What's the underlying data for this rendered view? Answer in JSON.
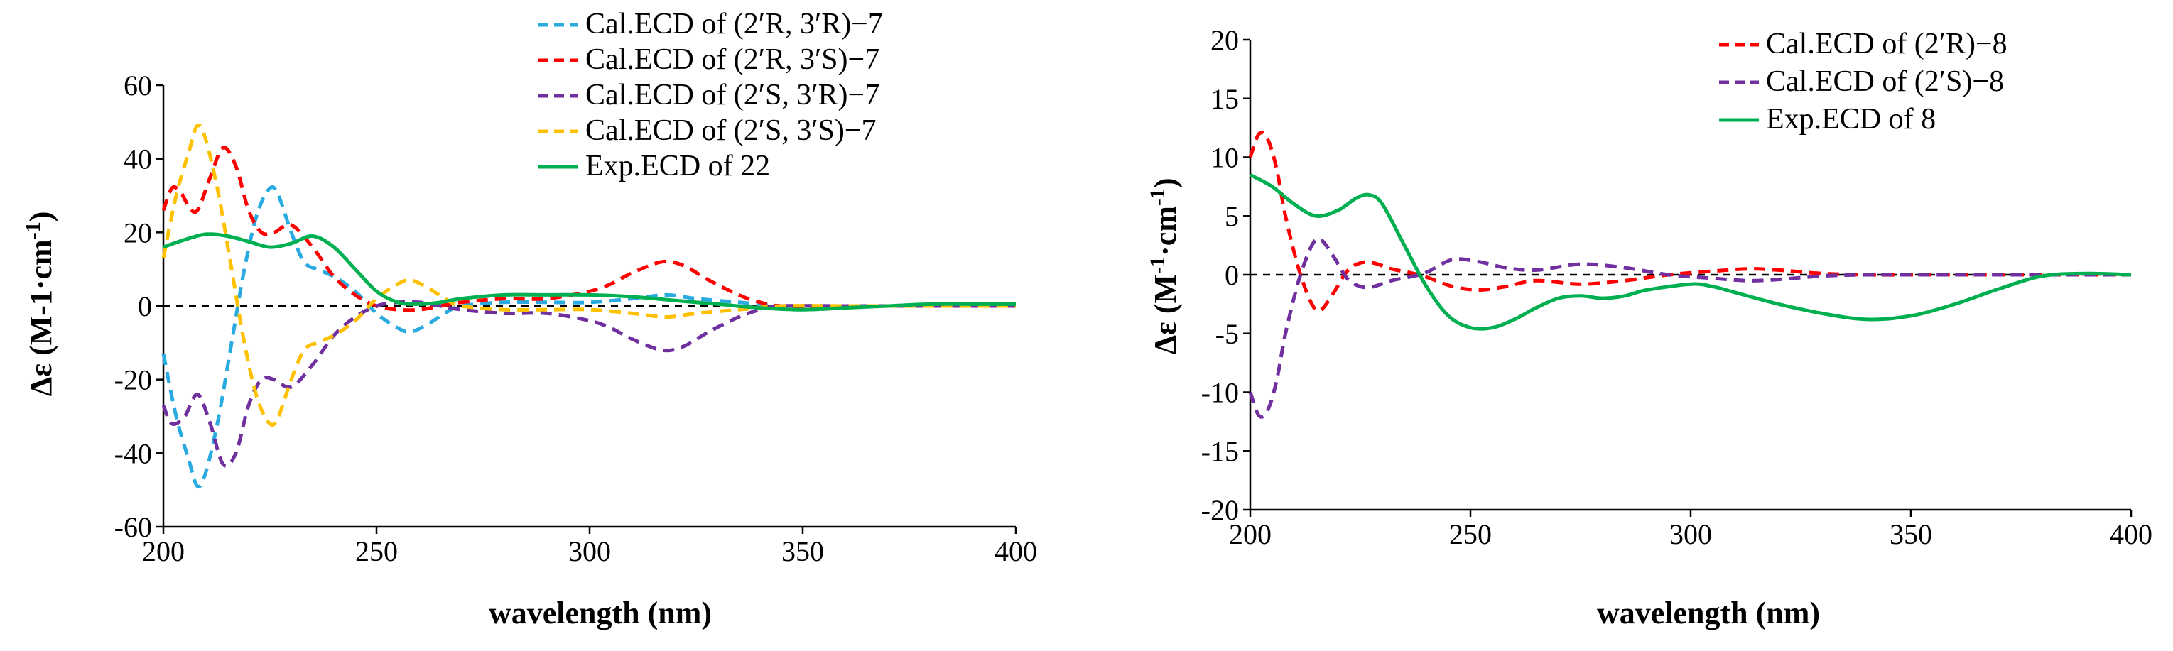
{
  "chart_data": [
    {
      "type": "line",
      "ylabel": "Δε (M-1·cm-1)",
      "ylabel_main": "Δε (M-1·cm",
      "ylabel_sup": "-1",
      "ylabel_end": ")",
      "xlabel": "wavelength (nm)",
      "xlim": [
        200,
        400
      ],
      "ylim": [
        -60,
        60
      ],
      "xticks": [
        200,
        250,
        300,
        350,
        400
      ],
      "xtick_labels": [
        "200",
        "250",
        "300",
        "350",
        "400"
      ],
      "yticks": [
        -60,
        -40,
        -20,
        0,
        20,
        40,
        60
      ],
      "ytick_labels": [
        "-60",
        "-40",
        "-20",
        "0",
        "20",
        "40",
        "60"
      ],
      "zero_line": true,
      "legend_position": "top-right",
      "series": [
        {
          "name": "Cal.ECD of (2′R, 3′R)−7",
          "color": "#29ABE2",
          "dashed": true,
          "x": [
            200,
            203,
            206,
            208,
            210,
            213,
            216,
            219,
            222,
            225,
            227,
            230,
            233,
            236,
            240,
            245,
            250,
            255,
            258,
            262,
            266,
            270,
            280,
            290,
            300,
            310,
            318,
            325,
            335,
            345,
            360,
            380,
            400
          ],
          "y": [
            -13,
            -30,
            -42,
            -49,
            -45,
            -30,
            -10,
            10,
            25,
            32,
            30,
            20,
            12,
            10,
            8,
            4,
            -2,
            -6,
            -7,
            -5,
            -2,
            0,
            1,
            1,
            1,
            2,
            3,
            2,
            1,
            0,
            0,
            0,
            0
          ]
        },
        {
          "name": "Cal.ECD of (2′R, 3′S)−7",
          "color": "#FF0000",
          "dashed": true,
          "x": [
            200,
            202,
            204,
            206,
            208,
            211,
            214,
            217,
            220,
            223,
            226,
            230,
            235,
            240,
            245,
            250,
            255,
            260,
            265,
            270,
            280,
            290,
            300,
            305,
            310,
            317,
            322,
            328,
            335,
            340,
            345,
            360,
            380,
            400
          ],
          "y": [
            26,
            32,
            31,
            27,
            26,
            35,
            43,
            38,
            26,
            20,
            20,
            22,
            16,
            8,
            3,
            0,
            -1,
            -1,
            0,
            1,
            2,
            2,
            4,
            6,
            9,
            12,
            11,
            7,
            3,
            1,
            0,
            0,
            0,
            0
          ]
        },
        {
          "name": "Cal.ECD of (2′S, 3′R)−7",
          "color": "#7030A0",
          "dashed": true,
          "x": [
            200,
            202,
            205,
            208,
            211,
            214,
            217,
            220,
            223,
            226,
            230,
            235,
            240,
            245,
            250,
            255,
            260,
            265,
            270,
            280,
            290,
            300,
            305,
            310,
            317,
            322,
            328,
            335,
            340,
            345,
            360,
            380,
            400
          ],
          "y": [
            -27,
            -32,
            -30,
            -24,
            -32,
            -43,
            -40,
            -27,
            -20,
            -20,
            -22,
            -16,
            -8,
            -3,
            0,
            1,
            1,
            0,
            -1,
            -2,
            -2,
            -4,
            -6,
            -9,
            -12,
            -11,
            -7,
            -3,
            -1,
            0,
            0,
            0,
            0
          ]
        },
        {
          "name": "Cal.ECD of (2′S, 3′S)−7",
          "color": "#FFC000",
          "dashed": true,
          "x": [
            200,
            203,
            206,
            208,
            210,
            213,
            216,
            219,
            222,
            225,
            227,
            230,
            233,
            236,
            240,
            245,
            250,
            255,
            258,
            262,
            266,
            270,
            280,
            290,
            300,
            310,
            318,
            325,
            335,
            345,
            360,
            380,
            400
          ],
          "y": [
            13,
            30,
            42,
            49,
            45,
            30,
            10,
            -10,
            -25,
            -32,
            -30,
            -20,
            -12,
            -10,
            -8,
            -4,
            2,
            6,
            7,
            5,
            2,
            0,
            -1,
            -1,
            -1,
            -2,
            -3,
            -2,
            -1,
            0,
            0,
            0,
            0
          ]
        },
        {
          "name": "Exp.ECD of 22",
          "color": "#00B050",
          "dashed": false,
          "x": [
            200,
            205,
            210,
            215,
            220,
            225,
            230,
            235,
            240,
            245,
            250,
            255,
            260,
            265,
            270,
            280,
            290,
            300,
            310,
            320,
            330,
            340,
            350,
            360,
            370,
            380,
            390,
            400
          ],
          "y": [
            16,
            18,
            19.5,
            19,
            17.5,
            16,
            17,
            19,
            16,
            10,
            4,
            1,
            0.5,
            1,
            2,
            3,
            3,
            3,
            2.5,
            1.5,
            0.5,
            -0.5,
            -1,
            -0.5,
            0,
            0.5,
            0.5,
            0.5
          ]
        }
      ]
    },
    {
      "type": "line",
      "ylabel": "Δε (M-1·cm-1)",
      "ylabel_main": "Δε (M",
      "ylabel_sup1": "-1",
      "ylabel_mid": "·cm",
      "ylabel_sup2": "-1",
      "ylabel_end": ")",
      "xlabel": "wavelength (nm)",
      "xlim": [
        200,
        400
      ],
      "ylim": [
        -20,
        20
      ],
      "xticks": [
        200,
        250,
        300,
        350,
        400
      ],
      "xtick_labels": [
        "200",
        "250",
        "300",
        "350",
        "400"
      ],
      "yticks": [
        -20,
        -15,
        -10,
        -5,
        0,
        5,
        10,
        15,
        20
      ],
      "ytick_labels": [
        "-20",
        "-15",
        "-10",
        "-5",
        "0",
        "5",
        "10",
        "15",
        "20"
      ],
      "zero_line": true,
      "legend_position": "top-right",
      "series": [
        {
          "name": "Cal.ECD of (2′R)−8",
          "color": "#FF0000",
          "dashed": true,
          "x": [
            200,
            202,
            204,
            206,
            208,
            211,
            214,
            216,
            219,
            222,
            225,
            228,
            232,
            236,
            240,
            246,
            252,
            258,
            265,
            275,
            285,
            295,
            305,
            313,
            320,
            330,
            340,
            350,
            360,
            380,
            400
          ],
          "y": [
            10,
            12,
            11.5,
            9,
            5,
            0.5,
            -2.5,
            -3,
            -1.5,
            0.3,
            1,
            1,
            0.5,
            0.2,
            -0.2,
            -1,
            -1.3,
            -1,
            -0.5,
            -0.8,
            -0.5,
            0,
            0.3,
            0.5,
            0.4,
            0.1,
            0,
            0,
            0,
            0,
            0
          ]
        },
        {
          "name": "Cal.ECD of (2′S)−8",
          "color": "#7030A0",
          "dashed": true,
          "x": [
            200,
            202,
            204,
            206,
            208,
            211,
            214,
            216,
            219,
            222,
            225,
            228,
            232,
            236,
            240,
            246,
            252,
            258,
            265,
            275,
            285,
            295,
            305,
            313,
            320,
            330,
            340,
            350,
            360,
            380,
            400
          ],
          "y": [
            -10,
            -12,
            -11.5,
            -9,
            -5,
            -0.5,
            2.5,
            3,
            1.5,
            -0.3,
            -1,
            -1,
            -0.5,
            -0.2,
            0.2,
            1.3,
            1.1,
            0.6,
            0.4,
            0.9,
            0.6,
            0,
            -0.3,
            -0.5,
            -0.4,
            -0.1,
            0,
            0,
            0,
            0,
            0
          ]
        },
        {
          "name": "Exp.ECD of 8",
          "color": "#00B050",
          "dashed": false,
          "x": [
            200,
            205,
            210,
            215,
            220,
            224,
            227,
            230,
            235,
            240,
            245,
            250,
            255,
            260,
            265,
            270,
            275,
            280,
            285,
            290,
            300,
            305,
            310,
            320,
            330,
            340,
            350,
            360,
            370,
            380,
            390,
            400
          ],
          "y": [
            8.5,
            7.5,
            6,
            5,
            5.5,
            6.5,
            6.8,
            6,
            2.5,
            -1,
            -3.5,
            -4.5,
            -4.5,
            -3.8,
            -2.8,
            -2,
            -1.8,
            -2,
            -1.8,
            -1.3,
            -0.8,
            -1,
            -1.5,
            -2.5,
            -3.3,
            -3.8,
            -3.5,
            -2.5,
            -1.2,
            -0.1,
            0.1,
            0
          ]
        }
      ]
    }
  ]
}
